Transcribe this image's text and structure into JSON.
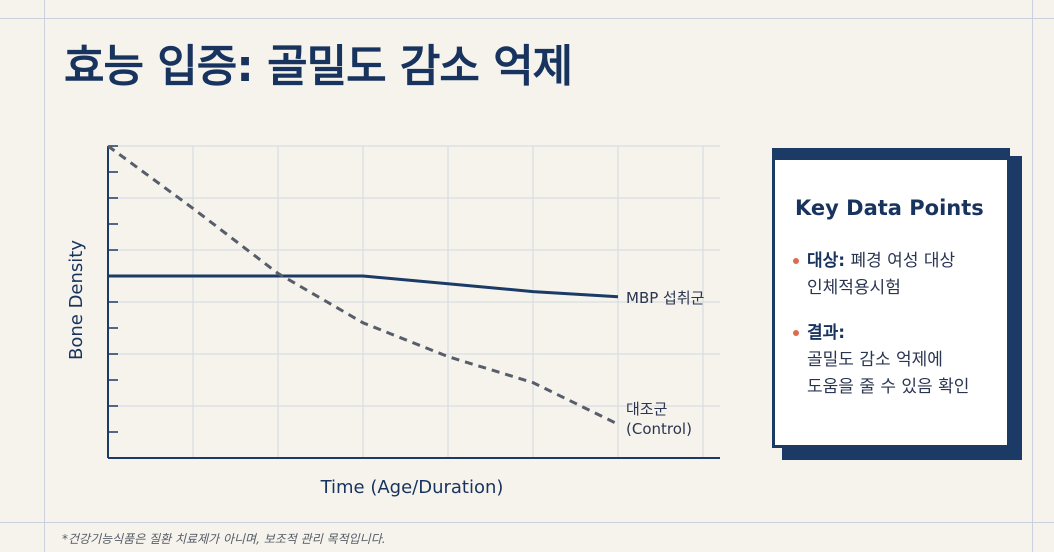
{
  "title": "효능 입증: 골밀도 감소 억제",
  "chart_data": {
    "type": "line",
    "xlabel": "Time (Age/Duration)",
    "ylabel": "Bone Density",
    "x": [
      0,
      1,
      2,
      3,
      4,
      5,
      6
    ],
    "xlim": [
      0,
      7.2
    ],
    "ylim": [
      0,
      12
    ],
    "grid": true,
    "series": [
      {
        "name": "MBP 섭취군",
        "name_lines": [
          "MBP 섭취군"
        ],
        "style": "solid",
        "color": "#1b3a66",
        "values": [
          7.0,
          7.0,
          7.0,
          7.0,
          6.7,
          6.4,
          6.2
        ]
      },
      {
        "name": "대조군 (Control)",
        "name_lines": [
          "대조군",
          "(Control)"
        ],
        "style": "dashed",
        "color": "#575d6a",
        "values": [
          12.0,
          9.6,
          7.1,
          5.2,
          3.9,
          2.9,
          1.3
        ]
      }
    ]
  },
  "card": {
    "title": "Key Data Points",
    "items": [
      {
        "label": "대상:",
        "lines": [
          "폐경 여성 대상",
          "인체적용시험"
        ]
      },
      {
        "label": "결과:",
        "lines": [
          "골밀도 감소 억제에",
          "도움을 줄 수 있음 확인"
        ]
      }
    ]
  },
  "footnote": "*건강기능식품은 질환 치료제가 아니며, 보조적 관리 목적입니다."
}
